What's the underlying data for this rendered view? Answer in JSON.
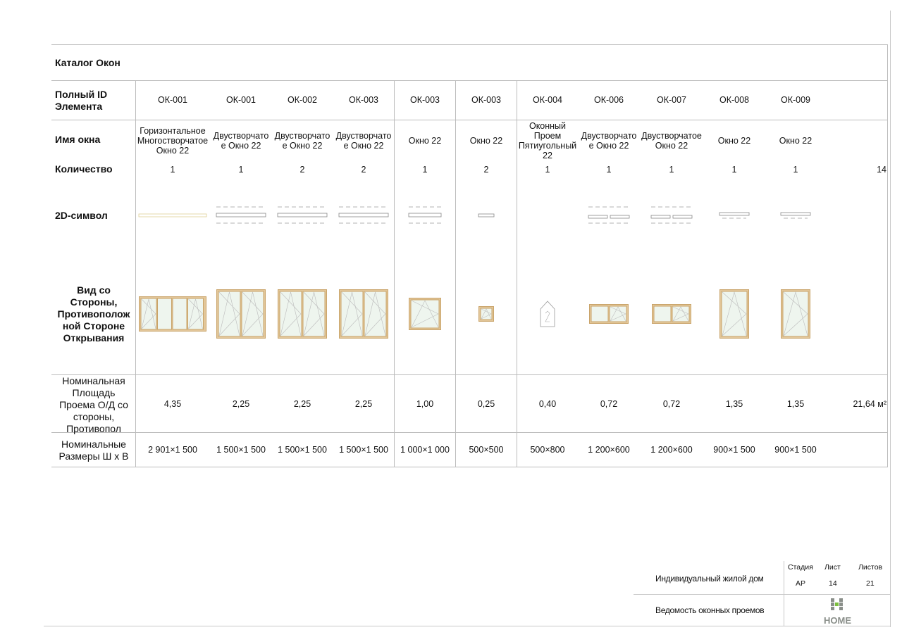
{
  "title": "Каталог Окон",
  "row_labels": {
    "id": "Полный ID Элемента",
    "name": "Имя окна",
    "qty": "Количество",
    "symbol2d": "2D-символ",
    "view": "Вид со Стороны, Противополож ной Стороне Открывания",
    "area": "Номинальная Площадь Проема О/Д со стороны, Противопол",
    "size": "Номинальные Размеры  Ш х В"
  },
  "windows": [
    {
      "id": "ОК-001",
      "name": "Горизонтальное Многостворчатое Окно 22",
      "qty": "1",
      "area": "4,35",
      "size": "2 901×1 500",
      "symbol": "multi",
      "view": "quad"
    },
    {
      "id": "ОК-001",
      "name": "Двустворчато е Окно 22",
      "qty": "1",
      "area": "2,25",
      "size": "1 500×1 500",
      "symbol": "double",
      "view": "double"
    },
    {
      "id": "ОК-002",
      "name": "Двустворчато е Окно 22",
      "qty": "2",
      "area": "2,25",
      "size": "1 500×1 500",
      "symbol": "double",
      "view": "double"
    },
    {
      "id": "ОК-003",
      "name": "Двустворчато е Окно 22",
      "qty": "2",
      "area": "2,25",
      "size": "1 500×1 500",
      "symbol": "double",
      "view": "double"
    },
    {
      "id": "ОК-003",
      "name": "Окно 22",
      "qty": "1",
      "area": "1,00",
      "size": "1 000×1 000",
      "symbol": "single-wide",
      "view": "square"
    },
    {
      "id": "ОК-003",
      "name": "Окно 22",
      "qty": "2",
      "area": "0,25",
      "size": "500×500",
      "symbol": "tiny",
      "view": "small"
    },
    {
      "id": "ОК-004",
      "name": "Оконный Проем Пятиугольный 22",
      "qty": "1",
      "area": "0,40",
      "size": "500×800",
      "symbol": "none",
      "view": "pentagon"
    },
    {
      "id": "ОК-006",
      "name": "Двустворчато е Окно 22",
      "qty": "1",
      "area": "0,72",
      "size": "1 200×600",
      "symbol": "split",
      "view": "wide-low"
    },
    {
      "id": "ОК-007",
      "name": "Двустворчатое Окно 22",
      "qty": "1",
      "area": "0,72",
      "size": "1 200×600",
      "symbol": "split",
      "view": "wide-low"
    },
    {
      "id": "ОК-008",
      "name": "Окно 22",
      "qty": "1",
      "area": "1,35",
      "size": "900×1 500",
      "symbol": "narrow",
      "view": "tall"
    },
    {
      "id": "ОК-009",
      "name": "Окно 22",
      "qty": "1",
      "area": "1,35",
      "size": "900×1 500",
      "symbol": "narrow",
      "view": "tall"
    }
  ],
  "totals": {
    "qty": "14",
    "area": "21,64 м²"
  },
  "title_block": {
    "project": "Индивидуальный жилой дом",
    "sheet_title": "Ведомость оконных проемов",
    "stage_label": "Стадия",
    "sheet_label": "Лист",
    "sheets_label": "Листов",
    "stage": "АР",
    "sheet": "14",
    "sheets": "21",
    "logo_text": "HOME"
  },
  "colors": {
    "frame": "#e3c79a",
    "frame_dark": "#c9a46a",
    "glass": "#eef5ee",
    "grid": "#bcbcbc",
    "logo_green": "#7cbf3f",
    "logo_gray": "#8a8f8a"
  }
}
